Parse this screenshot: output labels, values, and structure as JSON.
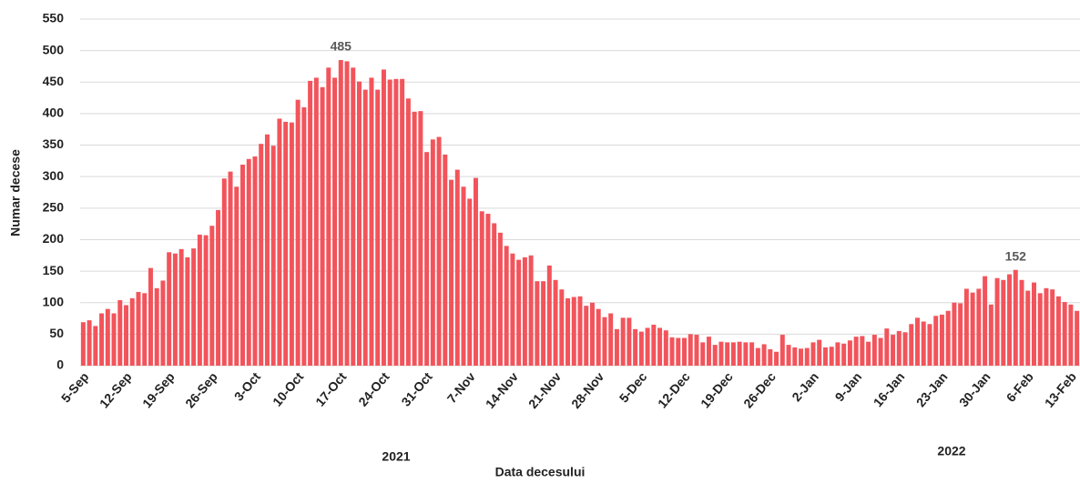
{
  "chart_data": {
    "type": "bar",
    "x_label": "Data decesului",
    "y_label": "Numar decese",
    "x_group_labels": [
      "2021",
      "2022"
    ],
    "color": "#f2545b",
    "grid": true,
    "ylim": [
      0,
      550
    ],
    "yticks": [
      0,
      50,
      100,
      150,
      200,
      250,
      300,
      350,
      400,
      450,
      500,
      550
    ],
    "categories": [
      "5-Sep",
      null,
      null,
      null,
      null,
      null,
      null,
      "12-Sep",
      null,
      null,
      null,
      null,
      null,
      null,
      "19-Sep",
      null,
      null,
      null,
      null,
      null,
      null,
      "26-Sep",
      null,
      null,
      null,
      null,
      null,
      null,
      "3-Oct",
      null,
      null,
      null,
      null,
      null,
      null,
      "10-Oct",
      null,
      null,
      null,
      null,
      null,
      null,
      "17-Oct",
      null,
      null,
      null,
      null,
      null,
      null,
      "24-Oct",
      null,
      null,
      null,
      null,
      null,
      null,
      "31-Oct",
      null,
      null,
      null,
      null,
      null,
      null,
      "7-Nov",
      null,
      null,
      null,
      null,
      null,
      null,
      "14-Nov",
      null,
      null,
      null,
      null,
      null,
      null,
      "21-Nov",
      null,
      null,
      null,
      null,
      null,
      null,
      "28-Nov",
      null,
      null,
      null,
      null,
      null,
      null,
      "5-Dec",
      null,
      null,
      null,
      null,
      null,
      null,
      "12-Dec",
      null,
      null,
      null,
      null,
      null,
      null,
      "19-Dec",
      null,
      null,
      null,
      null,
      null,
      null,
      "26-Dec",
      null,
      null,
      null,
      null,
      null,
      null,
      "2-Jan",
      null,
      null,
      null,
      null,
      null,
      null,
      "9-Jan",
      null,
      null,
      null,
      null,
      null,
      null,
      "16-Jan",
      null,
      null,
      null,
      null,
      null,
      null,
      "23-Jan",
      null,
      null,
      null,
      null,
      null,
      null,
      "30-Jan",
      null,
      null,
      null,
      null,
      null,
      null,
      "6-Feb",
      null,
      null,
      null,
      null,
      null,
      null,
      "13-Feb",
      null
    ],
    "values": [
      69,
      72,
      63,
      83,
      90,
      83,
      104,
      96,
      107,
      117,
      115,
      155,
      123,
      135,
      180,
      178,
      185,
      172,
      186,
      208,
      207,
      222,
      247,
      297,
      308,
      284,
      319,
      328,
      332,
      352,
      367,
      349,
      392,
      387,
      386,
      422,
      410,
      452,
      457,
      442,
      473,
      457,
      485,
      483,
      473,
      451,
      438,
      457,
      438,
      470,
      454,
      455,
      455,
      424,
      403,
      404,
      339,
      359,
      363,
      335,
      295,
      311,
      284,
      265,
      298,
      245,
      241,
      226,
      211,
      190,
      178,
      168,
      172,
      175,
      134,
      134,
      159,
      136,
      121,
      107,
      109,
      110,
      95,
      100,
      90,
      77,
      83,
      58,
      76,
      76,
      58,
      54,
      60,
      65,
      60,
      56,
      45,
      44,
      44,
      50,
      49,
      37,
      46,
      33,
      38,
      37,
      37,
      38,
      37,
      37,
      28,
      34,
      26,
      22,
      49,
      33,
      29,
      27,
      28,
      37,
      41,
      29,
      30,
      37,
      35,
      40,
      46,
      47,
      38,
      49,
      44,
      59,
      49,
      55,
      53,
      66,
      76,
      70,
      66,
      79,
      81,
      87,
      100,
      99,
      122,
      116,
      122,
      142,
      97,
      139,
      136,
      145,
      152,
      136,
      119,
      132,
      115,
      123,
      121,
      110,
      101,
      97,
      87
    ],
    "value_labels": [
      null,
      null,
      null,
      null,
      null,
      null,
      null,
      null,
      null,
      null,
      null,
      null,
      null,
      null,
      null,
      null,
      null,
      null,
      null,
      null,
      null,
      null,
      null,
      null,
      null,
      null,
      null,
      null,
      null,
      null,
      null,
      null,
      null,
      null,
      null,
      null,
      null,
      null,
      null,
      null,
      null,
      null,
      "485",
      null,
      null,
      null,
      null,
      null,
      null,
      null,
      null,
      null,
      null,
      null,
      null,
      null,
      null,
      null,
      null,
      null,
      null,
      null,
      null,
      null,
      null,
      null,
      null,
      null,
      null,
      null,
      null,
      null,
      null,
      null,
      null,
      null,
      null,
      null,
      null,
      null,
      null,
      null,
      null,
      null,
      null,
      null,
      null,
      null,
      null,
      null,
      null,
      null,
      null,
      null,
      null,
      null,
      null,
      null,
      null,
      null,
      null,
      null,
      null,
      null,
      null,
      null,
      null,
      null,
      null,
      null,
      null,
      null,
      null,
      null,
      null,
      null,
      null,
      null,
      null,
      null,
      null,
      null,
      null,
      null,
      null,
      null,
      null,
      null,
      null,
      null,
      null,
      null,
      null,
      null,
      null,
      null,
      null,
      null,
      null,
      null,
      null,
      null,
      null,
      null,
      null,
      null,
      null,
      null,
      null,
      null,
      null,
      null,
      "152",
      null,
      null,
      null,
      null,
      null,
      null,
      null,
      null,
      null,
      null
    ]
  }
}
